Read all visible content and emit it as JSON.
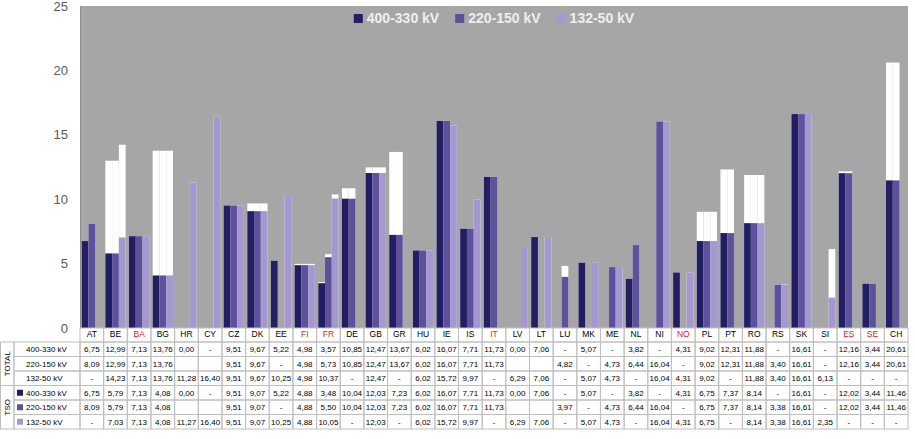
{
  "chart_data": {
    "type": "bar",
    "categories": [
      "AT",
      "BE",
      "BA",
      "BG",
      "HR",
      "CY",
      "CZ",
      "DK",
      "EE",
      "FI",
      "FR",
      "DE",
      "GB",
      "GR",
      "HU",
      "IE",
      "IS",
      "IT",
      "LV",
      "LT",
      "LU",
      "MK",
      "ME",
      "NL",
      "NI",
      "NO",
      "PL",
      "PT",
      "RO",
      "RS",
      "SK",
      "SI",
      "ES",
      "SE",
      "CH"
    ],
    "table_groups": [
      "TOTAL",
      "TSO"
    ],
    "series": [
      {
        "name": "400-330 kV",
        "color": "#231d63",
        "values": [
          6.75,
          5.79,
          7.13,
          4.08,
          0,
          null,
          9.51,
          9.07,
          5.22,
          4.88,
          3.48,
          10.04,
          12.03,
          7.23,
          6.02,
          16.07,
          7.71,
          11.73,
          0,
          7.06,
          null,
          5.07,
          null,
          3.82,
          null,
          4.31,
          6.75,
          7.37,
          8.14,
          null,
          16.61,
          null,
          12.02,
          3.44,
          11.46
        ],
        "value_labels": [
          "6,75",
          "5,79",
          "7,13",
          "4,08",
          "0,00",
          "-",
          "9,51",
          "9,07",
          "5,22",
          "4,88",
          "3,48",
          "10,04",
          "12,03",
          "7,23",
          "6,02",
          "16,07",
          "7,71",
          "11,73",
          "0,00",
          "7,06",
          "-",
          "5,07",
          "-",
          "3,82",
          "-",
          "4,31",
          "6,75",
          "7,37",
          "8,14",
          "-",
          "16,61",
          "-",
          "12,02",
          "3,44",
          "11,46"
        ],
        "totals": [
          6.75,
          12.99,
          7.13,
          13.76,
          0,
          null,
          9.51,
          9.67,
          5.22,
          4.98,
          3.57,
          10.85,
          12.47,
          13.67,
          6.02,
          16.07,
          7.71,
          11.73,
          0,
          7.06,
          null,
          5.07,
          null,
          3.82,
          null,
          4.31,
          9.02,
          12.31,
          11.88,
          null,
          16.61,
          null,
          12.16,
          3.44,
          20.61
        ],
        "total_labels": [
          "6,75",
          "12,99",
          "7,13",
          "13,76",
          "0,00",
          "-",
          "9,51",
          "9,67",
          "5,22",
          "4,98",
          "3,57",
          "10,85",
          "12,47",
          "13,67",
          "6,02",
          "16,07",
          "7,71",
          "11,73",
          "0,00",
          "7,06",
          "-",
          "5,07",
          "-",
          "3,82",
          "-",
          "4,31",
          "9,02",
          "12,31",
          "11,88",
          "-",
          "16,61",
          "-",
          "12,16",
          "3,44",
          "20,61"
        ]
      },
      {
        "name": "220-150 kV",
        "color": "#5e519c",
        "values": [
          8.09,
          5.79,
          7.13,
          4.08,
          null,
          null,
          9.51,
          9.07,
          null,
          4.88,
          5.5,
          10.04,
          12.03,
          7.23,
          6.02,
          16.07,
          7.71,
          11.73,
          null,
          null,
          3.97,
          null,
          4.73,
          6.44,
          16.04,
          null,
          6.75,
          7.37,
          8.14,
          3.38,
          16.61,
          null,
          12.02,
          3.44,
          11.46
        ],
        "value_labels": [
          "8,09",
          "5,79",
          "7,13",
          "4,08",
          null,
          null,
          "9,51",
          "9,07",
          "-",
          "4,88",
          "5,50",
          "10,04",
          "12,03",
          "7,23",
          "6,02",
          "16,07",
          "7,71",
          "11,73",
          null,
          null,
          "3,97",
          "-",
          "4,73",
          "6,44",
          "16,04",
          "-",
          "6,75",
          "7,37",
          "8,14",
          "3,38",
          "16,61",
          "-",
          "12,02",
          "3,44",
          "11,46"
        ],
        "totals": [
          8.09,
          12.99,
          7.13,
          13.76,
          null,
          null,
          9.51,
          9.67,
          null,
          4.98,
          5.73,
          10.85,
          12.47,
          13.67,
          6.02,
          16.07,
          7.71,
          11.73,
          null,
          null,
          4.82,
          null,
          4.73,
          6.44,
          16.04,
          null,
          9.02,
          12.31,
          11.88,
          3.4,
          16.61,
          null,
          12.16,
          3.44,
          20.61
        ],
        "total_labels": [
          "8,09",
          "12,99",
          "7,13",
          "13,76",
          null,
          null,
          "9,51",
          "9,67",
          "-",
          "4,98",
          "5,73",
          "10,85",
          "12,47",
          "13,67",
          "6,02",
          "16,07",
          "7,71",
          "11,73",
          null,
          null,
          "4,82",
          "-",
          "4,73",
          "6,44",
          "16,04",
          "-",
          "9,02",
          "12,31",
          "11,88",
          "3,40",
          "16,61",
          "-",
          "12,16",
          "3,44",
          "20,61"
        ]
      },
      {
        "name": "132-50 kV",
        "color": "#a598d0",
        "values": [
          null,
          7.03,
          7.13,
          4.08,
          11.27,
          16.4,
          9.51,
          9.07,
          10.25,
          4.88,
          10.05,
          null,
          12.03,
          null,
          6.02,
          15.72,
          9.97,
          null,
          6.29,
          7.06,
          null,
          5.07,
          4.73,
          null,
          16.04,
          4.31,
          6.75,
          null,
          8.14,
          3.38,
          16.61,
          2.35,
          null,
          null,
          null
        ],
        "value_labels": [
          "-",
          "7,03",
          "7,13",
          "4,08",
          "11,27",
          "16,40",
          "9,51",
          "9,07",
          "10,25",
          "4,88",
          "10,05",
          "-",
          "12,03",
          "-",
          "6,02",
          "15,72",
          "9,97",
          "-",
          "6,29",
          "7,06",
          "-",
          "5,07",
          "4,73",
          "-",
          "16,04",
          "4,31",
          "6,75",
          "-",
          "8,14",
          "3,38",
          "16,61",
          "2,35",
          "-",
          "-",
          "-"
        ],
        "totals": [
          null,
          14.23,
          7.13,
          13.76,
          11.28,
          16.4,
          9.51,
          9.67,
          10.25,
          4.98,
          10.37,
          null,
          12.47,
          null,
          6.02,
          15.72,
          9.97,
          null,
          6.29,
          7.06,
          null,
          5.07,
          4.73,
          null,
          16.04,
          4.31,
          9.02,
          null,
          11.88,
          3.4,
          16.61,
          6.13,
          null,
          null,
          null
        ],
        "total_labels": [
          "-",
          "14,23",
          "7,13",
          "13,76",
          "11,28",
          "16,40",
          "9,51",
          "9,67",
          "10,25",
          "4,98",
          "10,37",
          "-",
          "12,47",
          "-",
          "6,02",
          "15,72",
          "9,97",
          "-",
          "6,29",
          "7,06",
          "-",
          "5,07",
          "4,73",
          "-",
          "16,04",
          "4,31",
          "9,02",
          "-",
          "11,88",
          "3,40",
          "16,61",
          "6,13",
          "-",
          "-",
          "-"
        ]
      }
    ],
    "ylim": [
      0,
      25
    ],
    "yticks": [
      0,
      5,
      10,
      15,
      20,
      25
    ],
    "grid": false,
    "legend": "top"
  }
}
